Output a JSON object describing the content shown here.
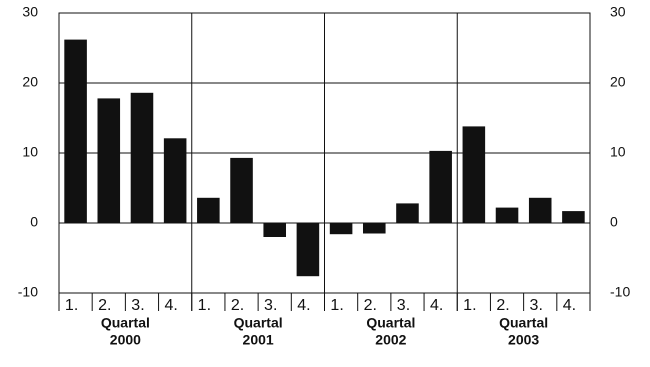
{
  "chart_data": {
    "type": "bar",
    "categories": [
      "1.",
      "2.",
      "3.",
      "4.",
      "1.",
      "2.",
      "3.",
      "4.",
      "1.",
      "2.",
      "3.",
      "4.",
      "1.",
      "2.",
      "3.",
      "4."
    ],
    "values": [
      26.2,
      17.8,
      18.6,
      12.1,
      3.6,
      9.3,
      -2.0,
      -7.6,
      -1.6,
      -1.5,
      2.8,
      10.3,
      13.8,
      2.2,
      3.6,
      1.7
    ],
    "groups": [
      [
        "Quartal",
        "2000"
      ],
      [
        "Quartal",
        "2001"
      ],
      [
        "Quartal",
        "2002"
      ],
      [
        "Quartal",
        "2003"
      ]
    ],
    "color": "#111111",
    "ylim": [
      -10,
      30
    ],
    "yticks": [
      -10,
      0,
      10,
      20,
      30
    ],
    "y2lim": [
      -10,
      30
    ],
    "y2ticks": [
      -10,
      0,
      10,
      20,
      30
    ],
    "grid": true
  }
}
